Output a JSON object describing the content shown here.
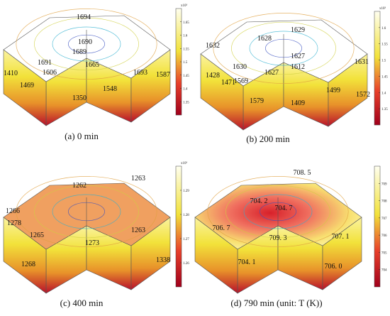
{
  "panels": [
    {
      "caption": "(a) 0 min",
      "colorbar": {
        "exponent": "x10³",
        "ticks": [
          1.65,
          1.6,
          1.55,
          1.5,
          1.45,
          1.4,
          1.35
        ]
      },
      "contour_labels": [
        "1694",
        "1690",
        "1689",
        "1691",
        "1665",
        "1693",
        "1410",
        "1606",
        "1587",
        "1469",
        "1548",
        "1350"
      ]
    },
    {
      "caption": "(b) 200 min",
      "colorbar": {
        "exponent": "x10³",
        "ticks": [
          1.6,
          1.55,
          1.5,
          1.45,
          1.4,
          1.35
        ]
      },
      "contour_labels": [
        "1629",
        "1628",
        "1632",
        "1630",
        "1627",
        "1612",
        "1627",
        "1631",
        "1428",
        "1471",
        "1569",
        "1499",
        "1572",
        "1409",
        "1579"
      ]
    },
    {
      "caption": "(c) 400 min",
      "colorbar": {
        "exponent": "x10³",
        "ticks": [
          1.29,
          1.28,
          1.27,
          1.26
        ]
      },
      "contour_labels": [
        "1263",
        "1262",
        "1266",
        "1278",
        "1265",
        "1263",
        "1273",
        "1268",
        "1338"
      ]
    },
    {
      "caption": "(d) 790 min (unit: T (K))",
      "colorbar": {
        "ticks": [
          709,
          708,
          707,
          706,
          705,
          704
        ]
      },
      "contour_labels": [
        "708. 5",
        "704. 2",
        "704. 7",
        "706. 7",
        "709. 3",
        "707. 1",
        "704. 1",
        "706. 0"
      ]
    }
  ]
}
